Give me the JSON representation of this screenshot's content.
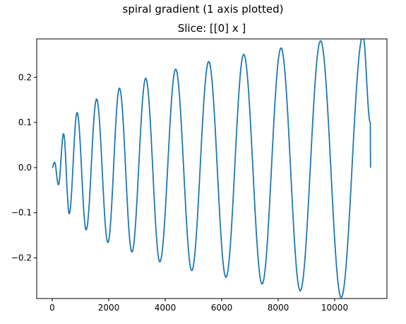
{
  "figure": {
    "suptitle": "spiral gradient (1 axis plotted)",
    "title": "Slice: [[0] x ]"
  },
  "chart_data": {
    "type": "line",
    "title": "Slice: [[0] x ]",
    "suptitle": "spiral gradient (1 axis plotted)",
    "xlabel": "",
    "ylabel": "",
    "xlim": [
      -550,
      11850
    ],
    "ylim": [
      -0.29,
      0.285
    ],
    "xticks": [
      0,
      2000,
      4000,
      6000,
      8000,
      10000
    ],
    "xtick_labels": [
      "0",
      "2000",
      "4000",
      "6000",
      "8000",
      "10000"
    ],
    "yticks": [
      -0.2,
      -0.1,
      0.0,
      0.1,
      0.2
    ],
    "ytick_labels": [
      "−0.2",
      "−0.1",
      "0.0",
      "0.1",
      "0.2"
    ],
    "grid": false,
    "line_color": "#1f77b4",
    "series": [
      {
        "extrema": [
          [
            0,
            0.0
          ],
          [
            80,
            0.012
          ],
          [
            220,
            -0.038
          ],
          [
            400,
            0.075
          ],
          [
            600,
            -0.102
          ],
          [
            880,
            0.122
          ],
          [
            1200,
            -0.138
          ],
          [
            1570,
            0.152
          ],
          [
            1970,
            -0.166
          ],
          [
            2380,
            0.176
          ],
          [
            2820,
            -0.187
          ],
          [
            3310,
            0.198
          ],
          [
            3810,
            -0.209
          ],
          [
            4370,
            0.218
          ],
          [
            4940,
            -0.228
          ],
          [
            5540,
            0.235
          ],
          [
            6150,
            -0.243
          ],
          [
            6780,
            0.251
          ],
          [
            7430,
            -0.258
          ],
          [
            8100,
            0.265
          ],
          [
            8780,
            -0.273
          ],
          [
            9500,
            0.281
          ],
          [
            10230,
            -0.288
          ],
          [
            11000,
            0.292
          ],
          [
            11260,
            0.1
          ],
          [
            11270,
            0.0
          ]
        ]
      }
    ]
  }
}
